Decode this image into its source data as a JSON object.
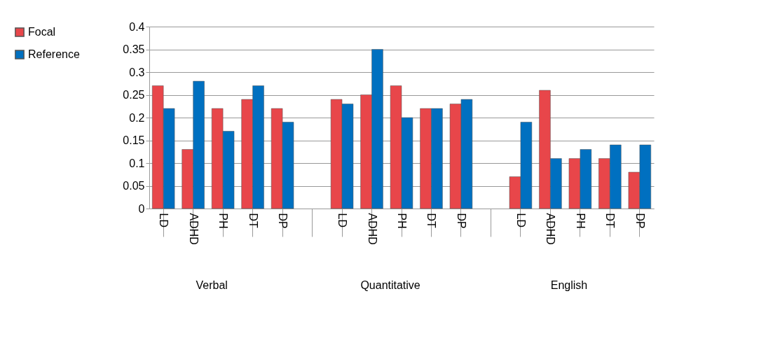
{
  "chart_data": {
    "type": "bar",
    "categories": [
      "LD",
      "ADHD",
      "PH",
      "DT",
      "DP",
      null,
      "LD",
      "ADHD",
      "PH",
      "DT",
      "DP",
      null,
      "LD",
      "ADHD",
      "PH",
      "DT",
      "DP"
    ],
    "series": [
      {
        "name": "Focal",
        "color": "#e8464a",
        "values": [
          0.27,
          0.13,
          0.22,
          0.24,
          0.22,
          null,
          0.24,
          0.25,
          0.27,
          0.22,
          0.23,
          null,
          0.07,
          0.26,
          0.11,
          0.11,
          0.08
        ]
      },
      {
        "name": "Reference",
        "color": "#0070c0",
        "values": [
          0.22,
          0.28,
          0.17,
          0.27,
          0.19,
          null,
          0.23,
          0.35,
          0.2,
          0.22,
          0.24,
          null,
          0.19,
          0.11,
          0.13,
          0.14,
          0.14
        ]
      }
    ],
    "annotations": [
      "Verbal",
      "Quantitative",
      "English"
    ],
    "ylim": [
      0,
      0.4
    ],
    "yticks": [
      0,
      0.05,
      0.1,
      0.15,
      0.2,
      0.25,
      0.3,
      0.35,
      0.4
    ],
    "grid": "y",
    "legend": "left"
  }
}
